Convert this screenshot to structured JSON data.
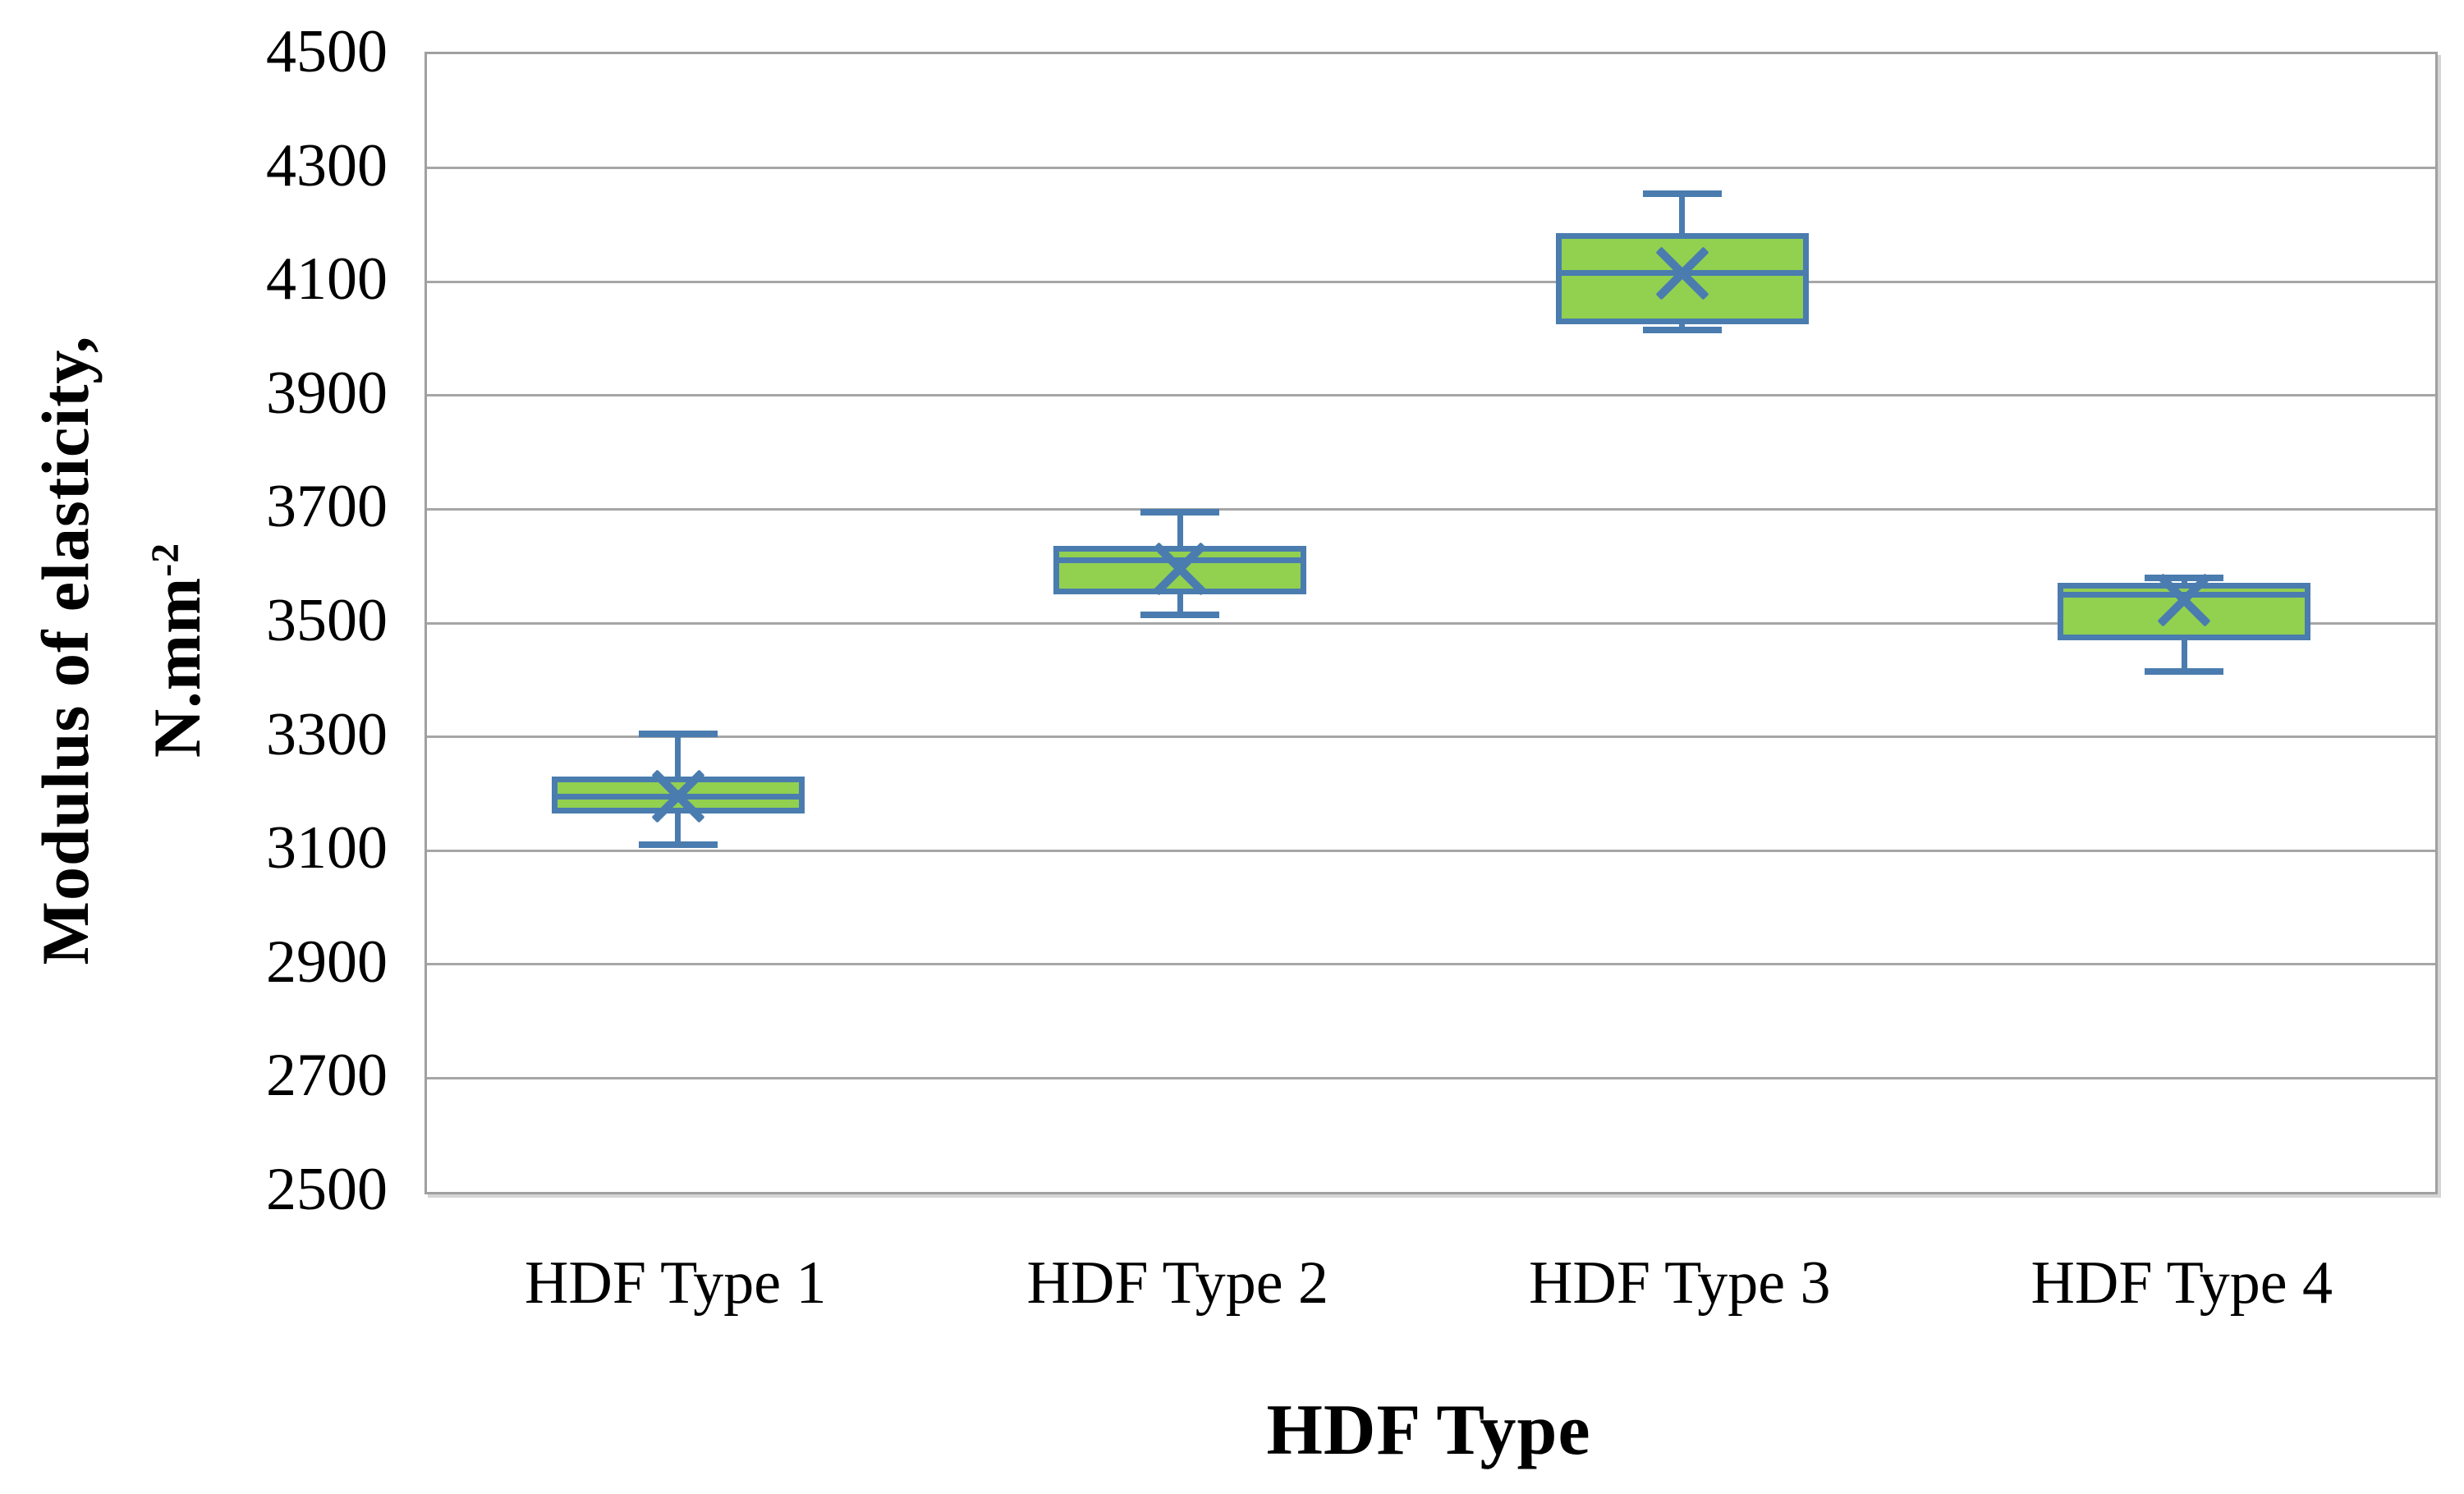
{
  "chart_data": {
    "type": "boxplot",
    "title": "",
    "xlabel": "HDF Type",
    "ylabel_line1": "Modulus of elasticity,",
    "ylabel_unit_base": "N.mm",
    "ylabel_unit_sup": "-2",
    "categories": [
      "HDF Type 1",
      "HDF Type 2",
      "HDF Type 3",
      "HDF Type 4"
    ],
    "ylim": [
      2500,
      4500
    ],
    "ytick_step": 200,
    "yticks": [
      2500,
      2700,
      2900,
      3100,
      3300,
      3500,
      3700,
      3900,
      4100,
      4300,
      4500
    ],
    "grid": true,
    "legend": "none",
    "mean_marker": "x-cross",
    "series": [
      {
        "name": "HDF Type 1",
        "min": 3110,
        "q1": 3165,
        "median": 3195,
        "q3": 3230,
        "max": 3305,
        "mean": 3195
      },
      {
        "name": "HDF Type 2",
        "min": 3515,
        "q1": 3550,
        "median": 3610,
        "q3": 3635,
        "max": 3695,
        "mean": 3595
      },
      {
        "name": "HDF Type 3",
        "min": 4015,
        "q1": 4025,
        "median": 4115,
        "q3": 4185,
        "max": 4255,
        "mean": 4115
      },
      {
        "name": "HDF Type 4",
        "min": 3415,
        "q1": 3470,
        "median": 3550,
        "q3": 3570,
        "max": 3580,
        "mean": 3540
      }
    ],
    "colors": {
      "box_fill": "#92D050",
      "box_border": "#4A7CAF",
      "gridline": "#A6A6A6",
      "frame": "#A0A0A0",
      "text": "#000000",
      "background": "#FFFFFF"
    }
  }
}
